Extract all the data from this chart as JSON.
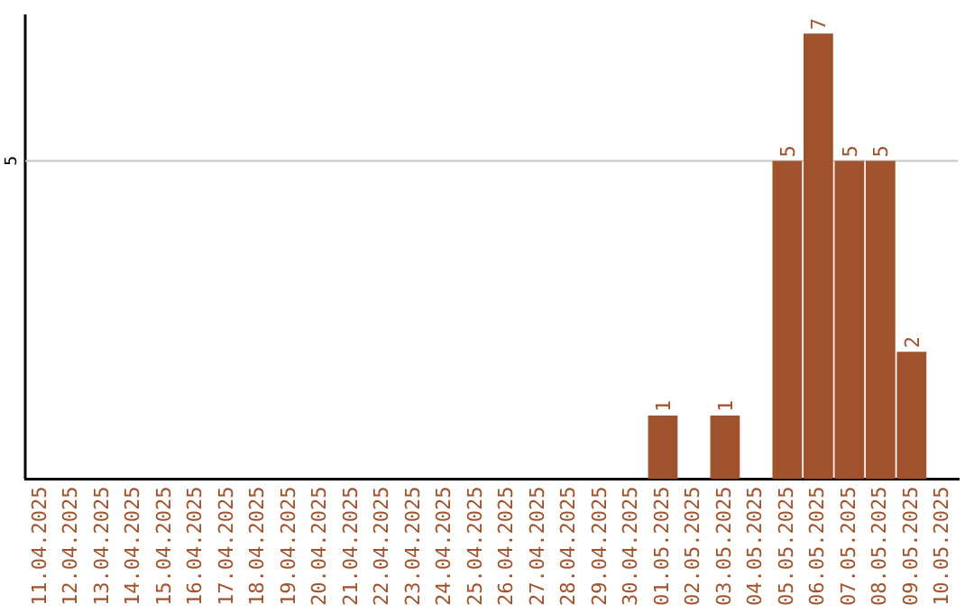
{
  "chart_data": {
    "type": "bar",
    "ylim": [
      0,
      7.3
    ],
    "categories": [
      "11.04.2025",
      "12.04.2025",
      "13.04.2025",
      "14.04.2025",
      "15.04.2025",
      "16.04.2025",
      "17.04.2025",
      "18.04.2025",
      "19.04.2025",
      "20.04.2025",
      "21.04.2025",
      "22.04.2025",
      "23.04.2025",
      "24.04.2025",
      "25.04.2025",
      "26.04.2025",
      "27.04.2025",
      "28.04.2025",
      "29.04.2025",
      "30.04.2025",
      "01.05.2025",
      "02.05.2025",
      "03.05.2025",
      "04.05.2025",
      "05.05.2025",
      "06.05.2025",
      "07.05.2025",
      "08.05.2025",
      "09.05.2025",
      "10.05.2025"
    ],
    "values": [
      null,
      null,
      null,
      null,
      null,
      null,
      null,
      null,
      null,
      null,
      null,
      null,
      null,
      null,
      null,
      null,
      null,
      null,
      null,
      null,
      1,
      null,
      1,
      null,
      5,
      7,
      5,
      5,
      2,
      null
    ],
    "value_labels": [
      null,
      null,
      null,
      null,
      null,
      null,
      null,
      null,
      null,
      null,
      null,
      null,
      null,
      null,
      null,
      null,
      null,
      null,
      null,
      null,
      "1",
      null,
      "1",
      null,
      "5",
      "7",
      "5",
      "5",
      "2",
      null
    ],
    "color": "#a0522d",
    "ref_lines": [
      {
        "axis": "y",
        "value": 5,
        "label": "5",
        "color": "#c8c8c8"
      }
    ]
  }
}
